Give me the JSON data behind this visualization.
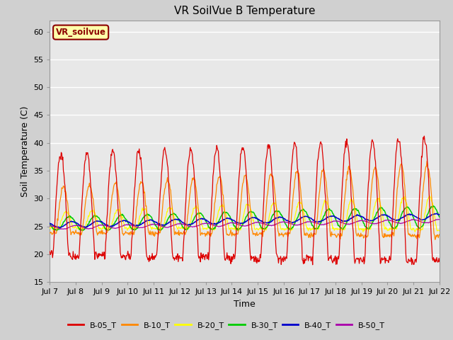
{
  "title": "VR SoilVue B Temperature",
  "xlabel": "Time",
  "ylabel": "Soil Temperature (C)",
  "ylim": [
    15,
    62
  ],
  "yticks": [
    15,
    20,
    25,
    30,
    35,
    40,
    45,
    50,
    55,
    60
  ],
  "fig_bg": "#d0d0d0",
  "plot_bg": "#e8e8e8",
  "grid_color": "#ffffff",
  "colors": {
    "B-05_T": "#dd0000",
    "B-10_T": "#ff8800",
    "B-20_T": "#ffff00",
    "B-30_T": "#00cc00",
    "B-40_T": "#0000cc",
    "B-50_T": "#aa00aa"
  },
  "legend_label": "VR_soilvue",
  "n_days": 15,
  "start_day": 7,
  "figsize": [
    6.4,
    4.8
  ],
  "dpi": 100
}
